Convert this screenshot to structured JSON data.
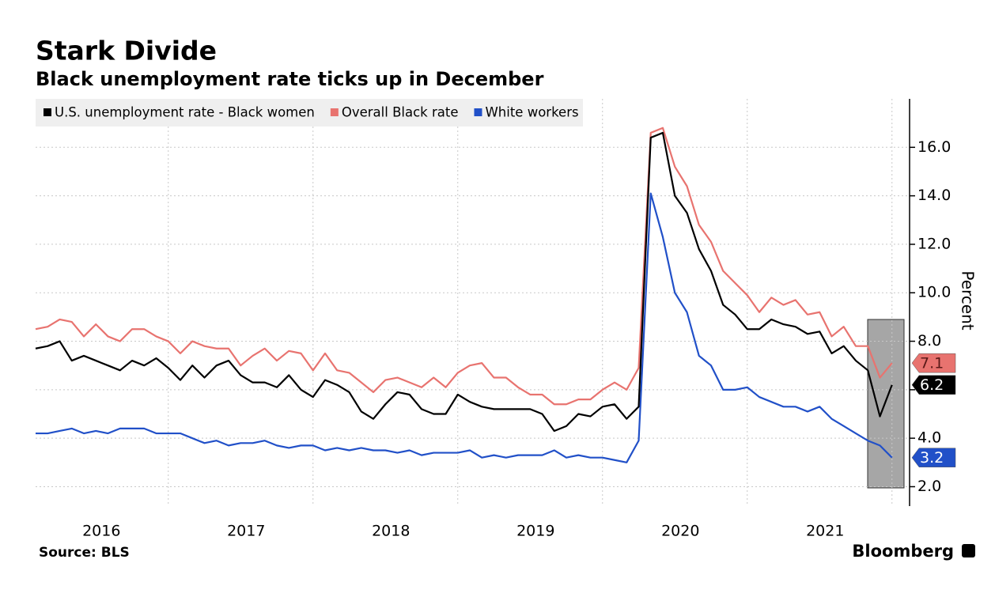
{
  "chart_data": {
    "type": "line",
    "title": "Stark Divide",
    "subtitle": "Black unemployment rate ticks up in December",
    "ylabel": "Percent",
    "source": "Source: BLS",
    "brand": "Bloomberg",
    "categories": [
      null,
      null,
      null,
      null,
      null,
      "2016",
      null,
      null,
      null,
      null,
      null,
      null,
      null,
      null,
      null,
      null,
      null,
      "2017",
      null,
      null,
      null,
      null,
      null,
      null,
      null,
      null,
      null,
      null,
      null,
      "2018",
      null,
      null,
      null,
      null,
      null,
      null,
      null,
      null,
      null,
      null,
      null,
      "2019",
      null,
      null,
      null,
      null,
      null,
      null,
      null,
      null,
      null,
      null,
      null,
      "2020",
      null,
      null,
      null,
      null,
      null,
      null,
      null,
      null,
      null,
      null,
      null,
      "2021",
      null,
      null,
      null,
      null,
      null,
      null
    ],
    "ylim": [
      1.2,
      18
    ],
    "yticks": [
      {
        "value": 2,
        "label": "2.0"
      },
      {
        "value": 4,
        "label": "4.0"
      },
      {
        "value": 6,
        "label": "6.0"
      },
      {
        "value": 8,
        "label": "8.0"
      },
      {
        "value": 10,
        "label": "10.0"
      },
      {
        "value": 12,
        "label": "12.0"
      },
      {
        "value": 14,
        "label": "14.0"
      },
      {
        "value": 16,
        "label": "16.0"
      }
    ],
    "grid": true,
    "legend": "top-left",
    "series": [
      {
        "name": "U.S. unemployment rate - Black women",
        "color": "#000000",
        "values": [
          7.7,
          7.8,
          8.0,
          7.2,
          7.4,
          7.2,
          7.0,
          6.8,
          7.2,
          7.0,
          7.3,
          6.9,
          6.4,
          7.0,
          6.5,
          7.0,
          7.2,
          6.6,
          6.3,
          6.3,
          6.1,
          6.6,
          6.0,
          5.7,
          6.4,
          6.2,
          5.9,
          5.1,
          4.8,
          5.4,
          5.9,
          5.8,
          5.2,
          5.0,
          5.0,
          5.8,
          5.5,
          5.3,
          5.2,
          5.2,
          5.2,
          5.2,
          5.0,
          4.3,
          4.5,
          5.0,
          4.9,
          5.3,
          5.4,
          4.8,
          5.3,
          16.4,
          16.6,
          14.0,
          13.3,
          11.8,
          10.9,
          9.5,
          9.1,
          8.5,
          8.5,
          8.9,
          8.7,
          8.6,
          8.3,
          8.4,
          7.5,
          7.8,
          7.2,
          6.8,
          4.9,
          6.2
        ],
        "value_labels": [
          null,
          null,
          null,
          null,
          null,
          null,
          null,
          null,
          null,
          null,
          null,
          null,
          null,
          null,
          null,
          null,
          null,
          null,
          null,
          null,
          null,
          null,
          null,
          null,
          null,
          null,
          null,
          null,
          null,
          null,
          null,
          null,
          null,
          null,
          null,
          null,
          null,
          null,
          null,
          null,
          null,
          null,
          null,
          null,
          null,
          null,
          null,
          null,
          null,
          null,
          null,
          null,
          null,
          null,
          null,
          null,
          null,
          null,
          null,
          null,
          null,
          null,
          null,
          null,
          null,
          null,
          null,
          null,
          null,
          null,
          null,
          "6.2"
        ]
      },
      {
        "name": "Overall Black rate",
        "color": "#e8736f",
        "values": [
          8.5,
          8.6,
          8.9,
          8.8,
          8.2,
          8.7,
          8.2,
          8.0,
          8.5,
          8.5,
          8.2,
          8.0,
          7.5,
          8.0,
          7.8,
          7.7,
          7.7,
          7.0,
          7.4,
          7.7,
          7.2,
          7.6,
          7.5,
          6.8,
          7.5,
          6.8,
          6.7,
          6.3,
          5.9,
          6.4,
          6.5,
          6.3,
          6.1,
          6.5,
          6.1,
          6.7,
          7.0,
          7.1,
          6.5,
          6.5,
          6.1,
          5.8,
          5.8,
          5.4,
          5.4,
          5.6,
          5.6,
          6.0,
          6.3,
          6.0,
          6.9,
          16.6,
          16.8,
          15.2,
          14.4,
          12.8,
          12.1,
          10.9,
          10.4,
          9.9,
          9.2,
          9.8,
          9.5,
          9.7,
          9.1,
          9.2,
          8.2,
          8.6,
          7.8,
          7.8,
          6.5,
          7.1
        ],
        "value_labels": [
          null,
          null,
          null,
          null,
          null,
          null,
          null,
          null,
          null,
          null,
          null,
          null,
          null,
          null,
          null,
          null,
          null,
          null,
          null,
          null,
          null,
          null,
          null,
          null,
          null,
          null,
          null,
          null,
          null,
          null,
          null,
          null,
          null,
          null,
          null,
          null,
          null,
          null,
          null,
          null,
          null,
          null,
          null,
          null,
          null,
          null,
          null,
          null,
          null,
          null,
          null,
          null,
          null,
          null,
          null,
          null,
          null,
          null,
          null,
          null,
          null,
          null,
          null,
          null,
          null,
          null,
          null,
          null,
          null,
          null,
          null,
          "7.1"
        ]
      },
      {
        "name": "White workers",
        "color": "#2150c8",
        "values": [
          4.2,
          4.2,
          4.3,
          4.4,
          4.2,
          4.3,
          4.2,
          4.4,
          4.4,
          4.4,
          4.2,
          4.2,
          4.2,
          4.0,
          3.8,
          3.9,
          3.7,
          3.8,
          3.8,
          3.9,
          3.7,
          3.6,
          3.7,
          3.7,
          3.5,
          3.6,
          3.5,
          3.6,
          3.5,
          3.5,
          3.4,
          3.5,
          3.3,
          3.4,
          3.4,
          3.4,
          3.5,
          3.2,
          3.3,
          3.2,
          3.3,
          3.3,
          3.3,
          3.5,
          3.2,
          3.3,
          3.2,
          3.2,
          3.1,
          3.0,
          3.9,
          14.1,
          12.3,
          10.0,
          9.2,
          7.4,
          7.0,
          6.0,
          6.0,
          6.1,
          5.7,
          5.5,
          5.3,
          5.3,
          5.1,
          5.3,
          4.8,
          4.5,
          4.2,
          3.9,
          3.7,
          3.2
        ],
        "value_labels": [
          null,
          null,
          null,
          null,
          null,
          null,
          null,
          null,
          null,
          null,
          null,
          null,
          null,
          null,
          null,
          null,
          null,
          null,
          null,
          null,
          null,
          null,
          null,
          null,
          null,
          null,
          null,
          null,
          null,
          null,
          null,
          null,
          null,
          null,
          null,
          null,
          null,
          null,
          null,
          null,
          null,
          null,
          null,
          null,
          null,
          null,
          null,
          null,
          null,
          null,
          null,
          null,
          null,
          null,
          null,
          null,
          null,
          null,
          null,
          null,
          null,
          null,
          null,
          null,
          null,
          null,
          null,
          null,
          null,
          null,
          null,
          "3.2"
        ]
      }
    ]
  }
}
